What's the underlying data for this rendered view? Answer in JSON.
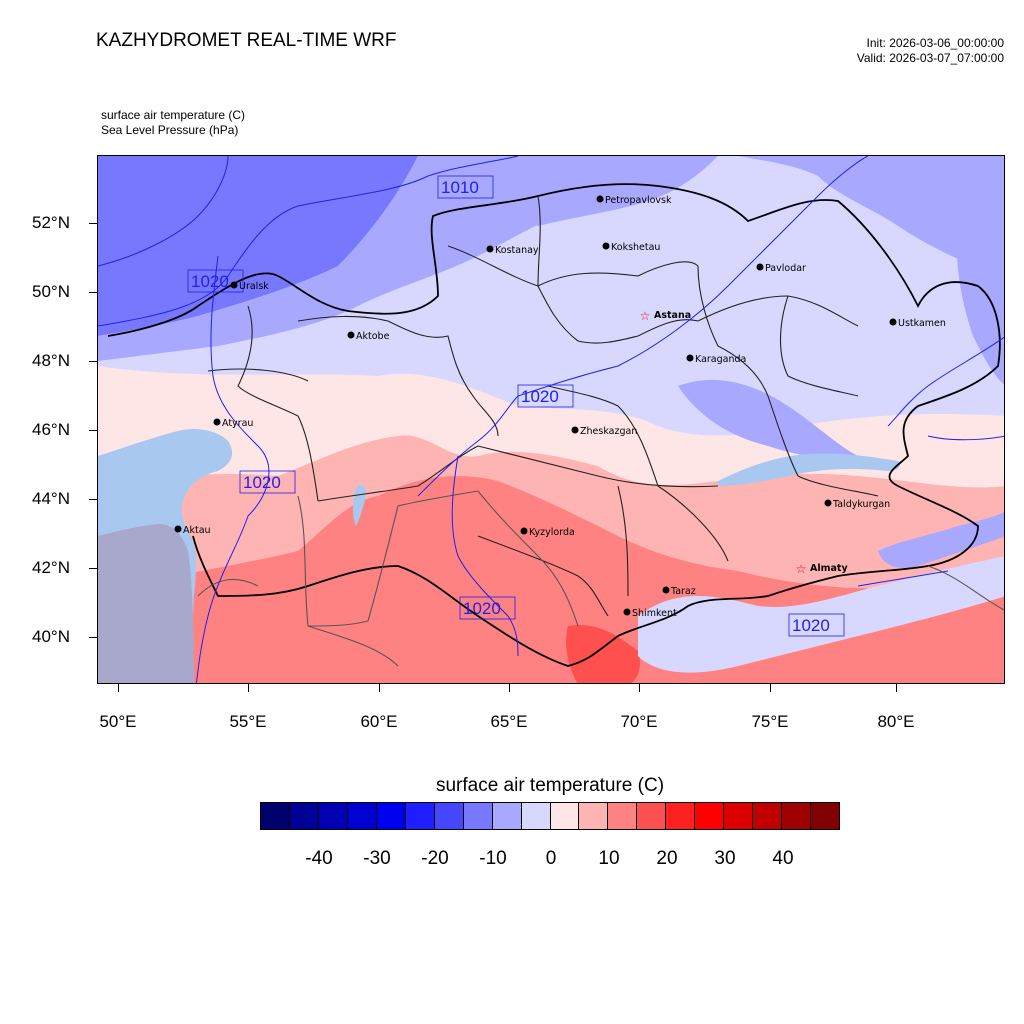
{
  "header": {
    "title": "KAZHYDROMET REAL-TIME WRF",
    "init": "Init: 2026-03-06_00:00:00",
    "valid": "Valid: 2026-03-07_07:00:00"
  },
  "fields": {
    "field1": "surface air temperature   (C)",
    "field2": "Sea Level Pressure   (hPa)"
  },
  "axes": {
    "lat_labels": [
      "52°N",
      "50°N",
      "48°N",
      "46°N",
      "44°N",
      "42°N",
      "40°N"
    ],
    "lon_labels": [
      "50°E",
      "55°E",
      "60°E",
      "65°E",
      "70°E",
      "75°E",
      "80°E"
    ]
  },
  "map": {
    "cities": [
      {
        "name": "Petropavlovsk",
        "capital": false
      },
      {
        "name": "Kostanay",
        "capital": false
      },
      {
        "name": "Kokshetau",
        "capital": false
      },
      {
        "name": "Pavlodar",
        "capital": false
      },
      {
        "name": "Uralsk",
        "capital": false
      },
      {
        "name": "Astana",
        "capital": true
      },
      {
        "name": "Aktobe",
        "capital": false
      },
      {
        "name": "Ustkamen",
        "capital": false
      },
      {
        "name": "Karaganda",
        "capital": false
      },
      {
        "name": "Atyrau",
        "capital": false
      },
      {
        "name": "Zheskazgan",
        "capital": false
      },
      {
        "name": "Taldykurgan",
        "capital": false
      },
      {
        "name": "Kyzylorda",
        "capital": false
      },
      {
        "name": "Aktau",
        "capital": false
      },
      {
        "name": "Almaty",
        "capital": true
      },
      {
        "name": "Taraz",
        "capital": false
      },
      {
        "name": "Shimkent",
        "capital": false
      }
    ],
    "isobar_labels": [
      "1010",
      "1020",
      "1020",
      "1020",
      "1020",
      "1020"
    ]
  },
  "colorbar": {
    "title": "surface air temperature  (C)",
    "labels": [
      "-40",
      "-30",
      "-20",
      "-10",
      "0",
      "10",
      "20",
      "30",
      "40"
    ],
    "colors": [
      "#00006e",
      "#000096",
      "#0000b4",
      "#0000d2",
      "#0000f0",
      "#1e1eff",
      "#4646ff",
      "#7878ff",
      "#a8a8ff",
      "#d8d8ff",
      "#ffe6e6",
      "#ffb4b4",
      "#ff8282",
      "#ff5050",
      "#ff2020",
      "#ff0000",
      "#dc0000",
      "#be0000",
      "#a00000",
      "#820000"
    ]
  },
  "palette": {
    "very_cold": "#7878ff",
    "cold": "#a8a8ff",
    "cool": "#d8d8ff",
    "mild": "#ffe6e6",
    "warm": "#ffb4b4",
    "hot": "#ff8282",
    "sea": "#a8c8f0",
    "caspian_deep": "#a8a8cc",
    "boundary": "#000000",
    "isobar": "#2020ee"
  }
}
